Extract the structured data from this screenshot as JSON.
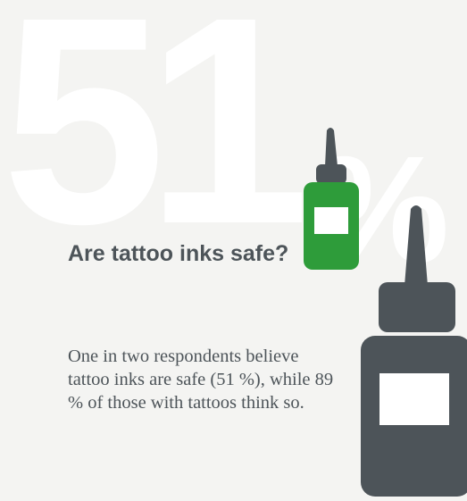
{
  "headline_stat": {
    "number": "51",
    "unit": "%"
  },
  "title": "Are tattoo inks safe?",
  "body": "One in two respondents believe tattoo inks are safe (51 %), while 89 % of those with tattoos think so.",
  "colors": {
    "background": "#f4f4f2",
    "watermark": "#ffffff",
    "text": "#4d5459",
    "bottle_dark": "#4d5459",
    "bottle_green": "#2e9c3a",
    "label": "#ffffff"
  },
  "icons": [
    "small-green-ink-bottle-icon",
    "large-dark-ink-bottle-icon"
  ]
}
